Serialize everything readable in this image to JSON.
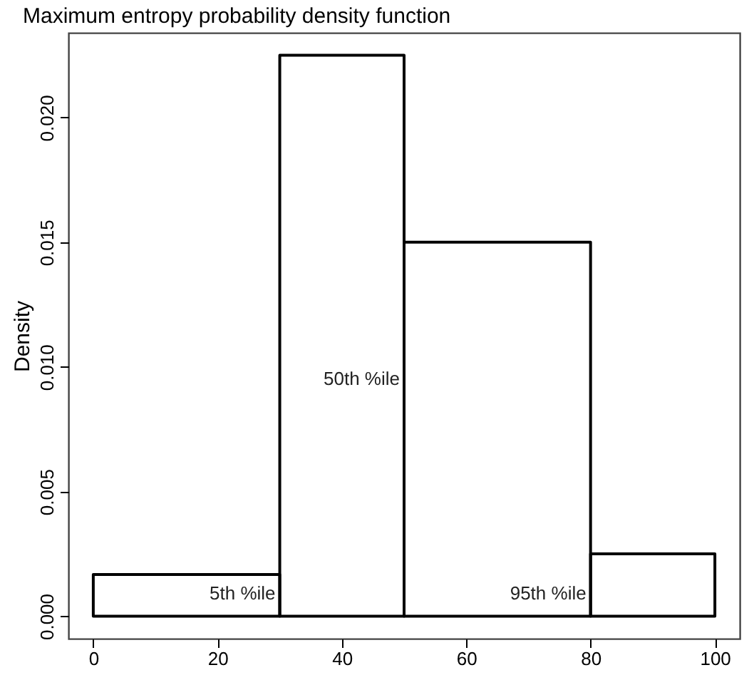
{
  "chart_data": {
    "type": "histogram",
    "title": "Maximum entropy probability density function",
    "ylabel": "Density",
    "bins": [
      0,
      30,
      50,
      80,
      100
    ],
    "values": [
      0.00167,
      0.0225,
      0.015,
      0.0025
    ],
    "color": "#000000",
    "xlim": [
      -4,
      104
    ],
    "xticks": [
      0,
      20,
      40,
      60,
      80,
      100
    ],
    "ylim": [
      -0.0009,
      0.0234
    ],
    "yticks": [
      {
        "value": 0,
        "label": "0.000"
      },
      {
        "value": 0.005,
        "label": "0.005"
      },
      {
        "value": 0.01,
        "label": "0.010"
      },
      {
        "value": 0.015,
        "label": "0.015"
      },
      {
        "value": 0.02,
        "label": "0.020"
      }
    ],
    "line_style": "solid",
    "annotations": [
      {
        "text": "5th %ile",
        "x": 30,
        "y": 0.0009
      },
      {
        "text": "50th %ile",
        "x": 50,
        "y": 0.0095
      },
      {
        "text": "95th %ile",
        "x": 80,
        "y": 0.0009
      }
    ],
    "grid": false
  }
}
